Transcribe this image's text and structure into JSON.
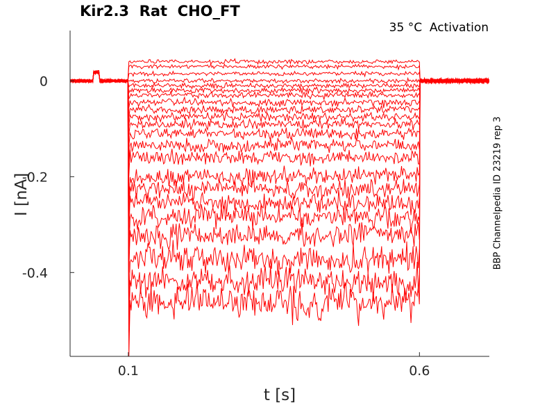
{
  "chart_data": {
    "type": "line",
    "title": "Kir2.3  Rat  CHO_FT",
    "subtitle": "35 °C  Activation",
    "side_label": "BBP Channelpedia ID 23219 rep 3",
    "xlabel": "t [s]",
    "ylabel": "I [nA]",
    "xlim": [
      0.0,
      0.72
    ],
    "ylim": [
      -0.575,
      0.105
    ],
    "x_ticks": [
      0.1,
      0.6
    ],
    "x_tick_labels": [
      "0.1",
      "0.6"
    ],
    "y_ticks": [
      0,
      -0.2,
      -0.4
    ],
    "y_tick_labels": [
      "0",
      "-0.2",
      "-0.4"
    ],
    "grid": false,
    "trace_color": "#ff0000",
    "pulse_start": 0.1,
    "pulse_end": 0.6,
    "holding_level": 0.0,
    "sweep_levels": [
      0.04,
      0.03,
      0.015,
      0.0,
      -0.01,
      -0.02,
      -0.03,
      -0.045,
      -0.06,
      -0.075,
      -0.09,
      -0.11,
      -0.135,
      -0.16,
      -0.2,
      -0.225,
      -0.255,
      -0.285,
      -0.32,
      -0.37,
      -0.42,
      -0.46
    ]
  }
}
